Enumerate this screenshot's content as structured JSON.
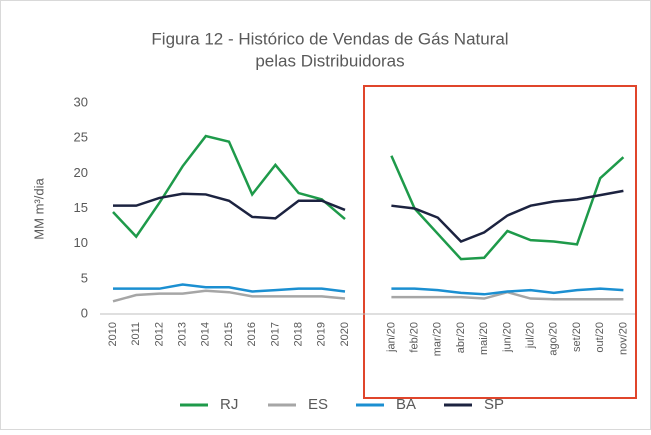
{
  "chart_data": {
    "type": "line",
    "title": [
      "Figura 12 - Histórico de Vendas de Gás Natural",
      "pelas Distribuidoras"
    ],
    "y_label": "MM m³/dia",
    "categories": [
      "2010",
      "2011",
      "2012",
      "2013",
      "2014",
      "2015",
      "2016",
      "2017",
      "2018",
      "2019",
      "2020",
      null,
      "jan/20",
      "feb/20",
      "mar/20",
      "abr/20",
      "mai/20",
      "jun/20",
      "jul/20",
      "ago/20",
      "set/20",
      "out/20",
      "nov/20"
    ],
    "series": [
      {
        "name": "RJ",
        "color": "#1e9a4a",
        "values": [
          14.5,
          11,
          15.8,
          21,
          25.3,
          24.5,
          17,
          21.2,
          17.2,
          16.3,
          13.5,
          null,
          22.5,
          15,
          11.4,
          7.8,
          8,
          11.8,
          10.5,
          10.3,
          9.9,
          19.3,
          22.3
        ]
      },
      {
        "name": "ES",
        "color": "#a6a6a6",
        "values": [
          1.8,
          2.7,
          2.9,
          2.9,
          3.3,
          3.1,
          2.5,
          2.5,
          2.5,
          2.5,
          2.2,
          null,
          2.4,
          2.4,
          2.4,
          2.4,
          2.2,
          3.1,
          2.2,
          2.1,
          2.1,
          2.1,
          2.1
        ]
      },
      {
        "name": "BA",
        "color": "#1b8fd1",
        "values": [
          3.6,
          3.6,
          3.6,
          4.2,
          3.8,
          3.8,
          3.2,
          3.4,
          3.6,
          3.6,
          3.2,
          null,
          3.6,
          3.6,
          3.4,
          3,
          2.8,
          3.2,
          3.4,
          3,
          3.4,
          3.6,
          3.4
        ]
      },
      {
        "name": "SP",
        "color": "#1c2340",
        "values": [
          15.4,
          15.4,
          16.5,
          17.1,
          17,
          16.1,
          13.8,
          13.6,
          16.1,
          16.1,
          14.8,
          null,
          15.4,
          15,
          13.7,
          10.3,
          11.6,
          14,
          15.4,
          16,
          16.3,
          16.9,
          17.5
        ]
      }
    ],
    "ylim": [
      0,
      30
    ],
    "yticks": [
      0,
      5,
      10,
      15,
      20,
      25,
      30
    ],
    "legend": "bottom"
  }
}
